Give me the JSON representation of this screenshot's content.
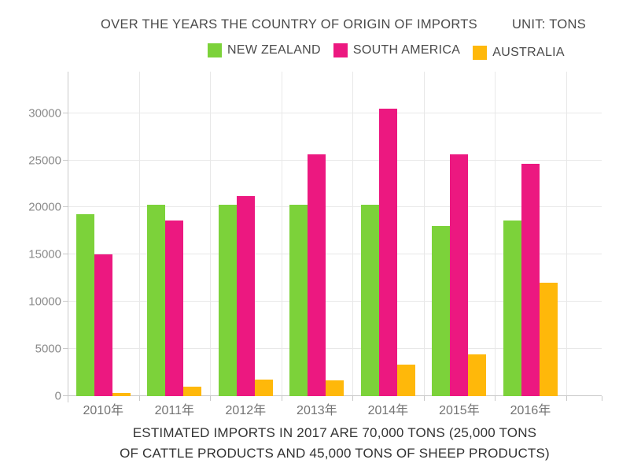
{
  "header": {
    "title": "OVER THE YEARS THE COUNTRY OF ORIGIN OF IMPORTS",
    "unit_label": "UNIT: TONS"
  },
  "caption": {
    "line1": "ESTIMATED IMPORTS IN 2017 ARE 70,000 TONS (25,000 TONS",
    "line2": "OF CATTLE PRODUCTS AND 45,000 TONS OF SHEEP PRODUCTS)"
  },
  "chart_data": {
    "type": "bar",
    "title": "OVER THE YEARS THE COUNTRY OF ORIGIN OF IMPORTS",
    "unit": "TONS",
    "categories": [
      "2010年",
      "2011年",
      "2012年",
      "2013年",
      "2014年",
      "2015年",
      "2016年"
    ],
    "series": [
      {
        "name": "NEW ZEALAND",
        "color": "#7cd23a",
        "values": [
          19300,
          20250,
          20250,
          20250,
          20250,
          18000,
          18650
        ]
      },
      {
        "name": "SOUTH AMERICA",
        "color": "#ec1880",
        "values": [
          15000,
          18600,
          21250,
          25600,
          30500,
          25600,
          24650
        ]
      },
      {
        "name": "AUSTRALIA",
        "color": "#ffb80a",
        "values": [
          300,
          1000,
          1750,
          1700,
          3300,
          4400,
          12050
        ]
      }
    ],
    "y_ticks": [
      0,
      5000,
      10000,
      15000,
      20000,
      25000,
      30000
    ],
    "ylim": [
      0,
      34400
    ],
    "xlabel": "",
    "ylabel": "",
    "grid": true,
    "legend_position": "top",
    "colors": {
      "grid": "#e8e8e8",
      "axis": "#c9c9c9",
      "axis_label": "#8a8a8a",
      "category_label": "#737373",
      "text": "#4a4a4a"
    }
  }
}
